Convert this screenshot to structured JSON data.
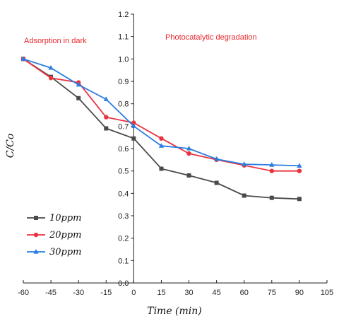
{
  "chart_data": {
    "type": "line",
    "xlabel": "Time (min)",
    "ylabel": "C/Co",
    "xlim": [
      -60,
      105
    ],
    "ylim": [
      0.0,
      1.2
    ],
    "xticks": [
      -60,
      -45,
      -30,
      -15,
      0,
      15,
      30,
      45,
      60,
      75,
      90,
      105
    ],
    "yticks": [
      "0.0",
      "0.1",
      "0.2",
      "0.3",
      "0.4",
      "0.5",
      "0.6",
      "0.7",
      "0.8",
      "0.9",
      "1.0",
      "1.1",
      "1.2"
    ],
    "x": [
      -60,
      -45,
      -30,
      -15,
      0,
      15,
      30,
      45,
      60,
      75,
      90
    ],
    "annotations": [
      "Adsorption in dark",
      "Photocatalytic degradation"
    ],
    "legend_position": "bottom-left",
    "grid": false,
    "series": [
      {
        "name": "10ppm",
        "color": "#4a4a4a",
        "marker": "square",
        "values": [
          1.0,
          0.92,
          0.825,
          0.69,
          0.645,
          0.51,
          0.48,
          0.447,
          0.39,
          0.38,
          0.375
        ]
      },
      {
        "name": "20ppm",
        "color": "#e8343f",
        "marker": "circle",
        "values": [
          1.0,
          0.915,
          0.895,
          0.74,
          0.715,
          0.645,
          0.578,
          0.55,
          0.525,
          0.5,
          0.5
        ]
      },
      {
        "name": "30ppm",
        "color": "#2a7de1",
        "marker": "triangle",
        "values": [
          1.0,
          0.96,
          0.885,
          0.82,
          0.7,
          0.612,
          0.6,
          0.553,
          0.53,
          0.527,
          0.523
        ]
      }
    ]
  }
}
